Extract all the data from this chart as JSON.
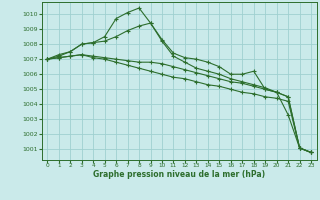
{
  "title": "Graphe pression niveau de la mer (hPa)",
  "background_color": "#caeaea",
  "grid_color": "#a0d0d0",
  "line_color": "#2d6e2d",
  "xlim": [
    -0.5,
    23.5
  ],
  "ylim": [
    1000.3,
    1010.8
  ],
  "yticks": [
    1001,
    1002,
    1003,
    1004,
    1005,
    1006,
    1007,
    1008,
    1009,
    1010
  ],
  "xticks": [
    0,
    1,
    2,
    3,
    4,
    5,
    6,
    7,
    8,
    9,
    10,
    11,
    12,
    13,
    14,
    15,
    16,
    17,
    18,
    19,
    20,
    21,
    22,
    23
  ],
  "series": [
    [
      1007.0,
      1007.3,
      1007.5,
      1008.0,
      1008.1,
      1008.5,
      1009.7,
      1010.1,
      1010.4,
      1009.4,
      1008.3,
      1007.4,
      1007.1,
      1007.0,
      1006.8,
      1006.5,
      1006.0,
      1006.0,
      1006.2,
      1005.0,
      1004.8,
      1003.3,
      1001.1,
      1000.8
    ],
    [
      1007.0,
      1007.2,
      1007.5,
      1008.0,
      1008.1,
      1008.2,
      1008.5,
      1008.9,
      1009.2,
      1009.4,
      1008.2,
      1007.2,
      1006.8,
      1006.4,
      1006.2,
      1006.0,
      1005.7,
      1005.5,
      1005.3,
      1005.1,
      1004.8,
      1004.5,
      1001.1,
      1000.8
    ],
    [
      1007.0,
      1007.1,
      1007.2,
      1007.3,
      1007.2,
      1007.1,
      1007.0,
      1006.9,
      1006.8,
      1006.8,
      1006.7,
      1006.5,
      1006.3,
      1006.1,
      1005.9,
      1005.7,
      1005.5,
      1005.4,
      1005.2,
      1005.0,
      1004.8,
      1004.5,
      1001.1,
      1000.8
    ],
    [
      1007.0,
      1007.1,
      1007.2,
      1007.3,
      1007.1,
      1007.0,
      1006.8,
      1006.6,
      1006.4,
      1006.2,
      1006.0,
      1005.8,
      1005.7,
      1005.5,
      1005.3,
      1005.2,
      1005.0,
      1004.8,
      1004.7,
      1004.5,
      1004.4,
      1004.2,
      1001.1,
      1000.8
    ]
  ]
}
